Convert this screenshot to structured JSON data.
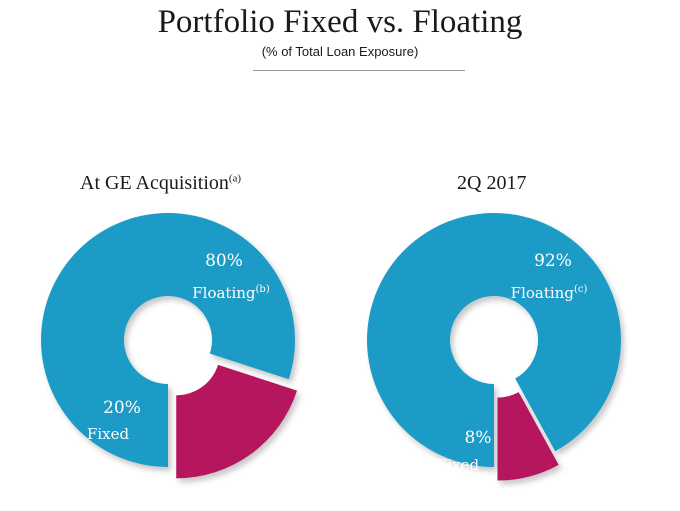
{
  "title": "Portfolio Fixed vs. Floating",
  "subtitle": "(% of Total Loan Exposure)",
  "chart_data": [
    {
      "type": "pie",
      "title": "At GE Acquisition",
      "title_note": "(a)",
      "slices": [
        {
          "label": "Floating",
          "note": "(b)",
          "value": 80,
          "value_label": "80%",
          "color": "#1a9bc7",
          "exploded": false
        },
        {
          "label": "Fixed",
          "note": "",
          "value": 20,
          "value_label": "20%",
          "color": "#b5135d",
          "exploded": true
        }
      ]
    },
    {
      "type": "pie",
      "title": "2Q 2017",
      "title_note": "",
      "slices": [
        {
          "label": "Floating",
          "note": "(c)",
          "value": 92,
          "value_label": "92%",
          "color": "#1a9bc7",
          "exploded": false
        },
        {
          "label": "Fixed",
          "note": "",
          "value": 8,
          "value_label": "8%",
          "color": "#b5135d",
          "exploded": true
        }
      ]
    }
  ]
}
